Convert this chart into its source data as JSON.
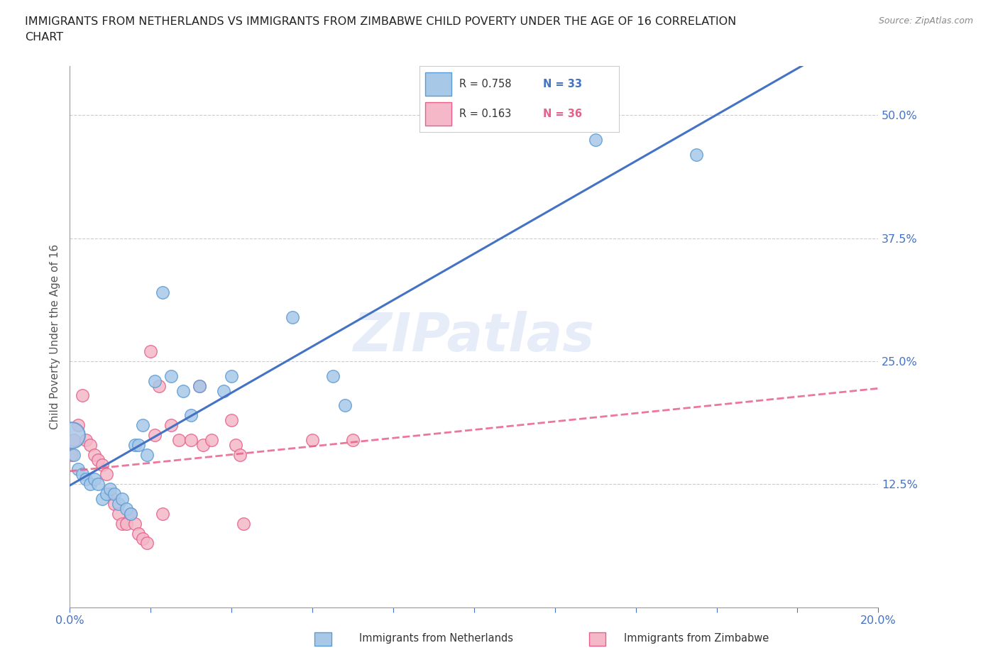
{
  "title_line1": "IMMIGRANTS FROM NETHERLANDS VS IMMIGRANTS FROM ZIMBABWE CHILD POVERTY UNDER THE AGE OF 16 CORRELATION",
  "title_line2": "CHART",
  "source": "Source: ZipAtlas.com",
  "ylabel": "Child Poverty Under the Age of 16",
  "xlim": [
    0.0,
    0.2
  ],
  "ylim": [
    0.0,
    0.55
  ],
  "xticks": [
    0.0,
    0.02,
    0.04,
    0.06,
    0.08,
    0.1,
    0.12,
    0.14,
    0.16,
    0.18,
    0.2
  ],
  "yticks": [
    0.0,
    0.125,
    0.25,
    0.375,
    0.5
  ],
  "netherlands_color": "#a8c8e8",
  "netherlands_edge_color": "#5b9bd5",
  "zimbabwe_color": "#f4b8c8",
  "zimbabwe_edge_color": "#e8608a",
  "netherlands_line_color": "#4472C4",
  "zimbabwe_line_color": "#e8608a",
  "netherlands_R": 0.758,
  "netherlands_N": 33,
  "zimbabwe_R": 0.163,
  "zimbabwe_N": 36,
  "grid_color": "#cccccc",
  "axis_color": "#4472C4",
  "tick_color": "#4472C4",
  "watermark": "ZIPatlas",
  "background_color": "#ffffff",
  "netherlands_x": [
    0.0005,
    0.001,
    0.002,
    0.003,
    0.004,
    0.005,
    0.006,
    0.007,
    0.008,
    0.009,
    0.01,
    0.011,
    0.012,
    0.013,
    0.014,
    0.015,
    0.016,
    0.017,
    0.018,
    0.019,
    0.021,
    0.023,
    0.025,
    0.028,
    0.03,
    0.032,
    0.038,
    0.04,
    0.055,
    0.065,
    0.068,
    0.13,
    0.155
  ],
  "netherlands_y": [
    0.175,
    0.155,
    0.14,
    0.135,
    0.13,
    0.125,
    0.13,
    0.125,
    0.11,
    0.115,
    0.12,
    0.115,
    0.105,
    0.11,
    0.1,
    0.095,
    0.165,
    0.165,
    0.185,
    0.155,
    0.23,
    0.32,
    0.235,
    0.22,
    0.195,
    0.225,
    0.22,
    0.235,
    0.295,
    0.235,
    0.205,
    0.475,
    0.46
  ],
  "netherlands_sizes": [
    700,
    90,
    90,
    90,
    90,
    90,
    90,
    90,
    90,
    90,
    90,
    90,
    90,
    90,
    90,
    90,
    90,
    90,
    90,
    90,
    90,
    90,
    90,
    90,
    90,
    90,
    90,
    90,
    90,
    90,
    90,
    90,
    90
  ],
  "zimbabwe_x": [
    0.0005,
    0.001,
    0.002,
    0.003,
    0.004,
    0.005,
    0.006,
    0.007,
    0.008,
    0.009,
    0.01,
    0.011,
    0.012,
    0.013,
    0.014,
    0.015,
    0.016,
    0.017,
    0.018,
    0.019,
    0.02,
    0.021,
    0.022,
    0.023,
    0.025,
    0.027,
    0.03,
    0.032,
    0.033,
    0.035,
    0.04,
    0.041,
    0.042,
    0.043,
    0.06,
    0.07
  ],
  "zimbabwe_y": [
    0.155,
    0.17,
    0.185,
    0.215,
    0.17,
    0.165,
    0.155,
    0.15,
    0.145,
    0.135,
    0.115,
    0.105,
    0.095,
    0.085,
    0.085,
    0.095,
    0.085,
    0.075,
    0.07,
    0.065,
    0.26,
    0.175,
    0.225,
    0.095,
    0.185,
    0.17,
    0.17,
    0.225,
    0.165,
    0.17,
    0.19,
    0.165,
    0.155,
    0.085,
    0.17,
    0.17
  ]
}
